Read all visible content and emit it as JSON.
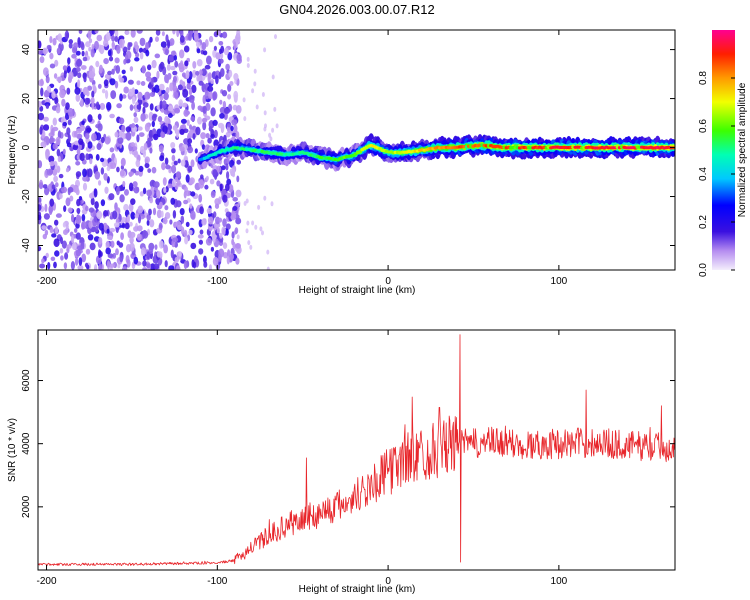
{
  "title": "GN04.2026.003.00.07.R12",
  "chart_data": [
    {
      "type": "heatmap",
      "name": "spectrogram",
      "xlabel": "Height of straight line (km)",
      "ylabel": "Frequency (Hz)",
      "xlim": [
        -205,
        168
      ],
      "ylim": [
        -50,
        48
      ],
      "xticks": [
        -200,
        -100,
        0,
        100
      ],
      "yticks": [
        -40,
        -20,
        0,
        20,
        40
      ],
      "colorbar": {
        "label": "Normalized spectral amplitude",
        "range": [
          0,
          1
        ],
        "ticks": [
          0.0,
          0.2,
          0.4,
          0.6,
          0.8
        ]
      },
      "noise_region_x": [
        -205,
        -90
      ],
      "ridge": [
        {
          "x": -110,
          "y": -5,
          "amp": 0.35
        },
        {
          "x": -100,
          "y": -2,
          "amp": 0.45
        },
        {
          "x": -90,
          "y": 0,
          "amp": 0.5
        },
        {
          "x": -80,
          "y": -1,
          "amp": 0.5
        },
        {
          "x": -70,
          "y": -2,
          "amp": 0.55
        },
        {
          "x": -60,
          "y": -3,
          "amp": 0.5
        },
        {
          "x": -50,
          "y": -2,
          "amp": 0.5
        },
        {
          "x": -40,
          "y": -4,
          "amp": 0.55
        },
        {
          "x": -30,
          "y": -5,
          "amp": 0.55
        },
        {
          "x": -20,
          "y": -3,
          "amp": 0.6
        },
        {
          "x": -10,
          "y": 1,
          "amp": 0.7
        },
        {
          "x": 0,
          "y": -2,
          "amp": 0.65
        },
        {
          "x": 10,
          "y": -2,
          "amp": 0.7
        },
        {
          "x": 20,
          "y": -1,
          "amp": 0.75
        },
        {
          "x": 30,
          "y": 0,
          "amp": 0.8
        },
        {
          "x": 40,
          "y": 0,
          "amp": 0.85
        },
        {
          "x": 55,
          "y": 1,
          "amp": 0.85
        },
        {
          "x": 70,
          "y": 0,
          "amp": 0.9
        },
        {
          "x": 85,
          "y": 0,
          "amp": 0.9
        },
        {
          "x": 100,
          "y": 0,
          "amp": 0.92
        },
        {
          "x": 115,
          "y": 0,
          "amp": 0.92
        },
        {
          "x": 130,
          "y": 0,
          "amp": 0.92
        },
        {
          "x": 145,
          "y": 0,
          "amp": 0.93
        },
        {
          "x": 160,
          "y": 0,
          "amp": 0.93
        },
        {
          "x": 168,
          "y": 0,
          "amp": 0.9
        }
      ]
    },
    {
      "type": "line",
      "name": "snr",
      "xlabel": "Height of straight line (km)",
      "ylabel": "SNR (10 * v/v)",
      "xlim": [
        -205,
        168
      ],
      "ylim": [
        0,
        7600
      ],
      "xticks": [
        -200,
        -100,
        0,
        100
      ],
      "yticks": [
        2000,
        4000,
        6000
      ],
      "color": "#e8262b",
      "envelope": {
        "x": [
          -205,
          -150,
          -100,
          -90,
          -80,
          -70,
          -60,
          -50,
          -40,
          -30,
          -20,
          -10,
          0,
          10,
          20,
          30,
          40,
          50,
          60,
          80,
          100,
          120,
          140,
          160,
          168
        ],
        "y": [
          180,
          180,
          230,
          300,
          700,
          1100,
          1400,
          1600,
          1800,
          2000,
          2300,
          2700,
          3100,
          3500,
          3700,
          3850,
          4000,
          4000,
          4050,
          3950,
          4000,
          4050,
          3950,
          3900,
          3850
        ]
      },
      "spikes": [
        {
          "x": -48,
          "y": 3550
        },
        {
          "x": 10,
          "y": 4600
        },
        {
          "x": 30,
          "y": 5150
        },
        {
          "x": 42,
          "y": 7450
        },
        {
          "x": 42.5,
          "y": 250
        },
        {
          "x": 116,
          "y": 5700
        },
        {
          "x": 160,
          "y": 5200
        }
      ]
    }
  ]
}
